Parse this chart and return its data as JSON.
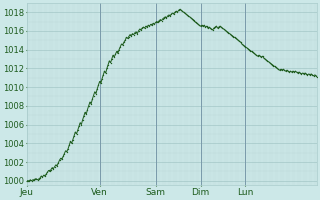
{
  "background_color": "#cce8e8",
  "plot_bg_color": "#cce8e8",
  "line_color": "#1e5c1e",
  "marker_color": "#1e5c1e",
  "grid_major_color": "#aacccc",
  "grid_minor_color": "#bcd8d8",
  "day_line_color": "#7a9aaa",
  "tick_label_color": "#1e5c1e",
  "x_labels": [
    "Jeu",
    "Ven",
    "Sam",
    "Dim",
    "Lun"
  ],
  "ylim": [
    999.5,
    1019.0
  ],
  "yticks": [
    1000,
    1002,
    1004,
    1006,
    1008,
    1010,
    1012,
    1014,
    1016,
    1018
  ],
  "pressure_data": [
    1000.0,
    1000.0,
    1000.0,
    1000.1,
    1000.0,
    1000.1,
    1000.1,
    1000.2,
    1000.2,
    1000.1,
    1000.2,
    1000.3,
    1000.5,
    1000.4,
    1000.6,
    1000.5,
    1000.7,
    1000.9,
    1001.1,
    1001.0,
    1001.2,
    1001.4,
    1001.3,
    1001.5,
    1001.7,
    1001.6,
    1001.9,
    1002.2,
    1002.4,
    1002.3,
    1002.6,
    1002.9,
    1003.2,
    1003.1,
    1003.4,
    1003.8,
    1004.2,
    1004.0,
    1004.4,
    1004.8,
    1005.2,
    1005.0,
    1005.4,
    1005.8,
    1006.2,
    1006.0,
    1006.5,
    1006.9,
    1007.3,
    1007.1,
    1007.6,
    1008.0,
    1008.4,
    1008.2,
    1008.7,
    1009.1,
    1009.5,
    1009.3,
    1009.8,
    1010.2,
    1010.6,
    1010.4,
    1010.9,
    1011.3,
    1011.7,
    1011.5,
    1012.0,
    1012.4,
    1012.8,
    1012.6,
    1013.0,
    1013.4,
    1013.2,
    1013.5,
    1013.8,
    1013.6,
    1014.0,
    1014.3,
    1014.6,
    1014.5,
    1014.8,
    1015.0,
    1015.3,
    1015.2,
    1015.4,
    1015.6,
    1015.5,
    1015.7,
    1015.6,
    1015.8,
    1015.9,
    1015.7,
    1016.0,
    1016.2,
    1016.1,
    1016.3,
    1016.4,
    1016.3,
    1016.5,
    1016.4,
    1016.6,
    1016.5,
    1016.7,
    1016.6,
    1016.8,
    1016.7,
    1016.9,
    1017.0,
    1016.9,
    1017.1,
    1017.2,
    1017.1,
    1017.3,
    1017.4,
    1017.5,
    1017.4,
    1017.6,
    1017.7,
    1017.6,
    1017.8,
    1017.9,
    1017.8,
    1018.0,
    1018.1,
    1018.0,
    1018.2,
    1018.3,
    1018.2,
    1018.1,
    1018.0,
    1017.9,
    1017.8,
    1017.7,
    1017.6,
    1017.5,
    1017.4,
    1017.3,
    1017.2,
    1017.1,
    1016.9,
    1016.8,
    1016.7,
    1016.6,
    1016.5,
    1016.6,
    1016.5,
    1016.6,
    1016.4,
    1016.5,
    1016.3,
    1016.4,
    1016.3,
    1016.2,
    1016.1,
    1016.3,
    1016.4,
    1016.5,
    1016.3,
    1016.4,
    1016.5,
    1016.4,
    1016.3,
    1016.2,
    1016.1,
    1016.0,
    1015.9,
    1015.8,
    1015.7,
    1015.6,
    1015.5,
    1015.4,
    1015.3,
    1015.2,
    1015.1,
    1015.0,
    1014.9,
    1014.8,
    1014.6,
    1014.5,
    1014.4,
    1014.3,
    1014.2,
    1014.1,
    1014.0,
    1013.9,
    1013.8,
    1013.7,
    1013.6,
    1013.5,
    1013.4,
    1013.3,
    1013.4,
    1013.3,
    1013.2,
    1013.3,
    1013.1,
    1013.0,
    1012.9,
    1012.8,
    1012.7,
    1012.6,
    1012.5,
    1012.4,
    1012.3,
    1012.2,
    1012.1,
    1012.0,
    1011.9,
    1011.8,
    1011.9,
    1011.8,
    1011.9,
    1011.8,
    1011.7,
    1011.8,
    1011.7,
    1011.6,
    1011.7,
    1011.6,
    1011.7,
    1011.6,
    1011.7,
    1011.6,
    1011.5,
    1011.6,
    1011.5,
    1011.4,
    1011.5,
    1011.4,
    1011.5,
    1011.4,
    1011.3,
    1011.4,
    1011.3,
    1011.4,
    1011.3,
    1011.2,
    1011.3,
    1011.2,
    1011.1
  ]
}
